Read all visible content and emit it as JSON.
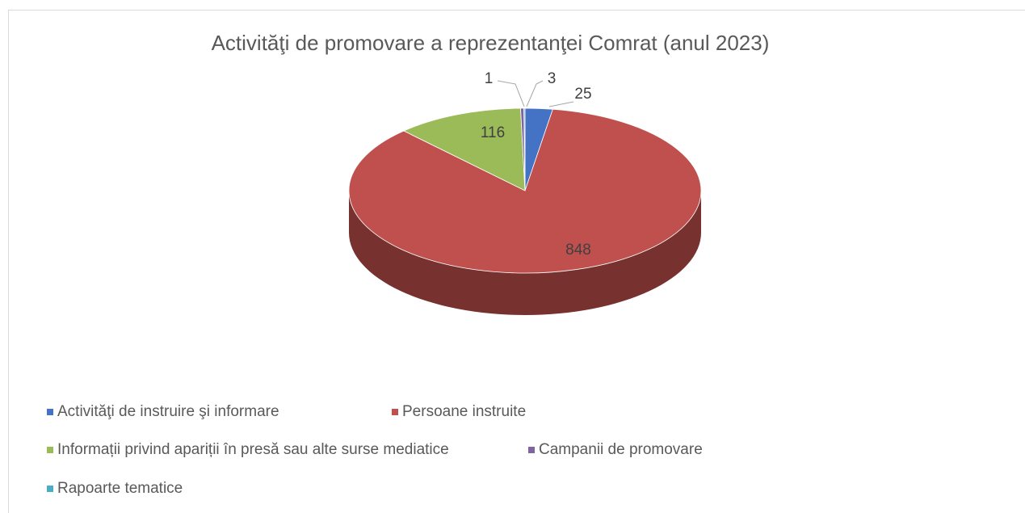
{
  "chart_data": {
    "type": "pie",
    "title": "Activităţi de promovare a reprezentanţei Comrat (anul 2023)",
    "categories": [
      "Activităţi de instruire şi informare",
      "Persoane instruite",
      "Informații privind apariții în presă sau alte surse mediatice",
      "Campanii de promovare",
      "Rapoarte tematice"
    ],
    "values": [
      25,
      848,
      116,
      3,
      1
    ],
    "colors": [
      "#4472c4",
      "#c0504d",
      "#9bbb59",
      "#8064a2",
      "#4bacc6"
    ],
    "legend": "bottom"
  }
}
